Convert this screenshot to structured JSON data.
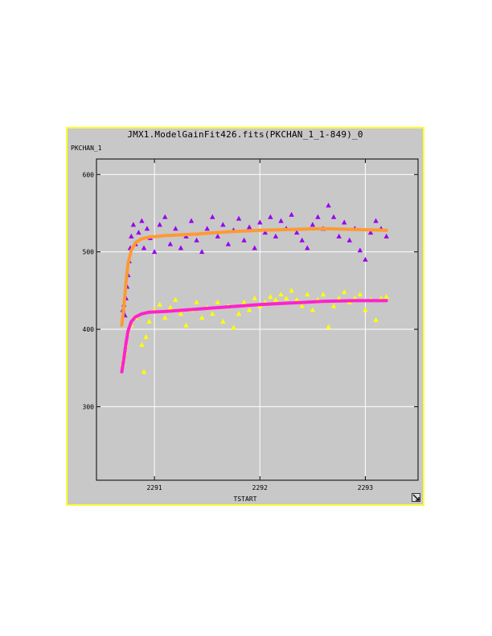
{
  "window": {
    "title": "JMX1.ModelGainFit426.fits(PKCHAN_1_1-849)_0",
    "border_color": "#ffff33",
    "background": "#c8c8c8"
  },
  "chart_data": {
    "type": "scatter",
    "title": "JMX1.ModelGainFit426.fits(PKCHAN_1_1-849)_0",
    "xlabel": "TSTART",
    "ylabel": "PKCHAN_1",
    "xlim": [
      2290.45,
      2293.5
    ],
    "ylim": [
      205,
      620
    ],
    "xticks": [
      2291,
      2292,
      2293
    ],
    "yticks": [
      300,
      400,
      500,
      600
    ],
    "grid": true,
    "series": [
      {
        "marker": "triangle",
        "color": "#9900ee",
        "points": [
          [
            2290.7,
            425
          ],
          [
            2290.71,
            432
          ],
          [
            2290.72,
            418
          ],
          [
            2290.73,
            440
          ],
          [
            2290.74,
            455
          ],
          [
            2290.75,
            470
          ],
          [
            2290.76,
            488
          ],
          [
            2290.77,
            505
          ],
          [
            2290.78,
            520
          ],
          [
            2290.8,
            535
          ],
          [
            2290.82,
            510
          ],
          [
            2290.85,
            525
          ],
          [
            2290.88,
            540
          ],
          [
            2290.9,
            505
          ],
          [
            2290.93,
            530
          ],
          [
            2290.96,
            518
          ],
          [
            2291.0,
            500
          ],
          [
            2291.05,
            535
          ],
          [
            2291.1,
            545
          ],
          [
            2291.15,
            510
          ],
          [
            2291.2,
            530
          ],
          [
            2291.25,
            505
          ],
          [
            2291.3,
            520
          ],
          [
            2291.35,
            540
          ],
          [
            2291.4,
            515
          ],
          [
            2291.45,
            500
          ],
          [
            2291.5,
            530
          ],
          [
            2291.55,
            545
          ],
          [
            2291.6,
            520
          ],
          [
            2291.65,
            535
          ],
          [
            2291.7,
            510
          ],
          [
            2291.75,
            528
          ],
          [
            2291.8,
            543
          ],
          [
            2291.85,
            515
          ],
          [
            2291.9,
            532
          ],
          [
            2291.95,
            505
          ],
          [
            2292.0,
            538
          ],
          [
            2292.05,
            525
          ],
          [
            2292.1,
            545
          ],
          [
            2292.15,
            520
          ],
          [
            2292.2,
            540
          ],
          [
            2292.25,
            530
          ],
          [
            2292.3,
            548
          ],
          [
            2292.35,
            525
          ],
          [
            2292.4,
            515
          ],
          [
            2292.45,
            505
          ],
          [
            2292.5,
            535
          ],
          [
            2292.55,
            545
          ],
          [
            2292.6,
            530
          ],
          [
            2292.65,
            560
          ],
          [
            2292.7,
            545
          ],
          [
            2292.75,
            520
          ],
          [
            2292.8,
            538
          ],
          [
            2292.85,
            515
          ],
          [
            2292.9,
            530
          ],
          [
            2292.95,
            502
          ],
          [
            2293.0,
            490
          ],
          [
            2293.05,
            525
          ],
          [
            2293.1,
            540
          ],
          [
            2293.15,
            530
          ],
          [
            2293.2,
            520
          ]
        ]
      },
      {
        "marker": "triangle",
        "color": "#ffff00",
        "points": [
          [
            2290.7,
            355
          ],
          [
            2290.71,
            362
          ],
          [
            2290.72,
            370
          ],
          [
            2290.73,
            380
          ],
          [
            2290.75,
            395
          ],
          [
            2290.78,
            405
          ],
          [
            2290.82,
            415
          ],
          [
            2290.88,
            380
          ],
          [
            2290.9,
            345
          ],
          [
            2290.92,
            390
          ],
          [
            2290.95,
            410
          ],
          [
            2291.0,
            425
          ],
          [
            2291.05,
            432
          ],
          [
            2291.1,
            415
          ],
          [
            2291.15,
            428
          ],
          [
            2291.2,
            438
          ],
          [
            2291.25,
            420
          ],
          [
            2291.3,
            405
          ],
          [
            2291.35,
            425
          ],
          [
            2291.4,
            435
          ],
          [
            2291.45,
            415
          ],
          [
            2291.5,
            428
          ],
          [
            2291.55,
            420
          ],
          [
            2291.6,
            435
          ],
          [
            2291.65,
            410
          ],
          [
            2291.7,
            430
          ],
          [
            2291.75,
            402
          ],
          [
            2291.8,
            420
          ],
          [
            2291.85,
            435
          ],
          [
            2291.9,
            425
          ],
          [
            2291.95,
            440
          ],
          [
            2292.0,
            430
          ],
          [
            2292.05,
            435
          ],
          [
            2292.1,
            442
          ],
          [
            2292.15,
            438
          ],
          [
            2292.2,
            445
          ],
          [
            2292.25,
            440
          ],
          [
            2292.3,
            450
          ],
          [
            2292.35,
            438
          ],
          [
            2292.4,
            430
          ],
          [
            2292.45,
            445
          ],
          [
            2292.5,
            425
          ],
          [
            2292.55,
            438
          ],
          [
            2292.6,
            445
          ],
          [
            2292.65,
            403
          ],
          [
            2292.7,
            430
          ],
          [
            2292.75,
            440
          ],
          [
            2292.8,
            448
          ],
          [
            2292.85,
            435
          ],
          [
            2292.9,
            440
          ],
          [
            2292.95,
            445
          ],
          [
            2293.0,
            425
          ],
          [
            2293.05,
            438
          ],
          [
            2293.1,
            412
          ],
          [
            2293.15,
            440
          ],
          [
            2293.2,
            442
          ]
        ]
      },
      {
        "marker": "line",
        "color": "#ff9933",
        "points": [
          [
            2290.69,
            405
          ],
          [
            2290.71,
            430
          ],
          [
            2290.73,
            460
          ],
          [
            2290.75,
            485
          ],
          [
            2290.78,
            502
          ],
          [
            2290.82,
            512
          ],
          [
            2290.88,
            517
          ],
          [
            2290.95,
            519
          ],
          [
            2291.1,
            521
          ],
          [
            2291.4,
            523
          ],
          [
            2291.7,
            526
          ],
          [
            2292.0,
            528
          ],
          [
            2292.3,
            529
          ],
          [
            2292.6,
            530
          ],
          [
            2292.9,
            529
          ],
          [
            2293.2,
            528
          ]
        ]
      },
      {
        "marker": "line",
        "color": "#ff22cc",
        "points": [
          [
            2290.69,
            345
          ],
          [
            2290.71,
            362
          ],
          [
            2290.73,
            382
          ],
          [
            2290.75,
            398
          ],
          [
            2290.78,
            410
          ],
          [
            2290.82,
            416
          ],
          [
            2290.88,
            420
          ],
          [
            2290.95,
            422
          ],
          [
            2291.1,
            423
          ],
          [
            2291.4,
            426
          ],
          [
            2291.7,
            429
          ],
          [
            2292.0,
            432
          ],
          [
            2292.3,
            434
          ],
          [
            2292.6,
            436
          ],
          [
            2292.9,
            437
          ],
          [
            2293.2,
            437
          ]
        ]
      }
    ]
  }
}
